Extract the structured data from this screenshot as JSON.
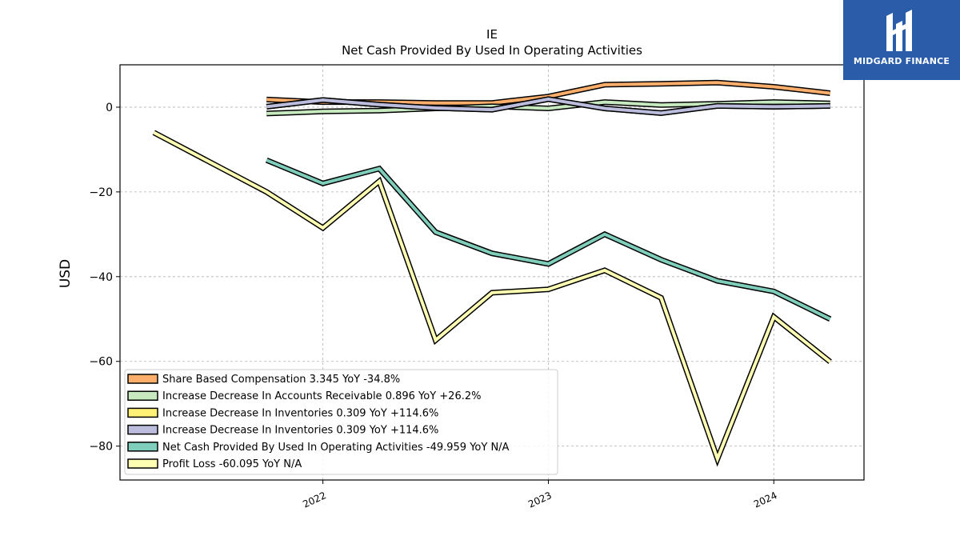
{
  "chart_data": {
    "type": "line",
    "title": "IE",
    "subtitle": "Net Cash Provided By Used In Operating Activities",
    "ylabel": "USD",
    "xlabel": "",
    "ylim": [
      -88,
      10
    ],
    "xlim": [
      2021.1,
      2024.4
    ],
    "yticks": [
      0,
      -20,
      -40,
      -60,
      -80
    ],
    "xticks": [
      2022,
      2023,
      2024
    ],
    "grid": true,
    "legend_position": "lower-left",
    "series": [
      {
        "name": "Share Based Compensation  3.345 YoY -34.8%",
        "color": "#fdae6b",
        "x": [
          2021.75,
          2022.0,
          2022.25,
          2022.5,
          2022.75,
          2023.0,
          2023.25,
          2023.5,
          2023.75,
          2024.0,
          2024.25
        ],
        "y": [
          1.8,
          1.2,
          1.2,
          1.0,
          1.0,
          2.5,
          5.3,
          5.5,
          5.8,
          4.8,
          3.3
        ]
      },
      {
        "name": "Increase Decrease In Accounts Receivable  0.896 YoY +26.2%",
        "color": "#c7e9c0",
        "x": [
          2021.75,
          2022.0,
          2022.25,
          2022.5,
          2022.75,
          2023.0,
          2023.25,
          2023.5,
          2023.75,
          2024.0,
          2024.25
        ],
        "y": [
          -1.5,
          -1.0,
          -0.8,
          -0.3,
          0.2,
          -0.3,
          1.2,
          0.5,
          0.8,
          1.2,
          0.9
        ]
      },
      {
        "name": "Increase Decrease In Inventories  0.309 YoY +114.6%",
        "color": "#fff176",
        "x": [
          2021.75,
          2022.0,
          2022.25,
          2022.5,
          2022.75,
          2023.0,
          2023.25,
          2023.5,
          2023.75,
          2024.0,
          2024.25
        ],
        "y": [
          0.1,
          1.7,
          0.6,
          -0.2,
          -0.6,
          1.9,
          -0.3,
          -1.4,
          0.3,
          0.1,
          0.3
        ]
      },
      {
        "name": "Increase Decrease In Inventories  0.309 YoY +114.6%",
        "color": "#bcbddc",
        "x": [
          2021.75,
          2022.0,
          2022.25,
          2022.5,
          2022.75,
          2023.0,
          2023.25,
          2023.5,
          2023.75,
          2024.0,
          2024.25
        ],
        "y": [
          0.1,
          1.7,
          0.6,
          -0.2,
          -0.6,
          1.9,
          -0.3,
          -1.4,
          0.3,
          0.1,
          0.3
        ]
      },
      {
        "name": "Net Cash Provided By Used In Operating Activities  -49.959 YoY N/A",
        "color": "#7fcdbb",
        "x": [
          2021.75,
          2022.0,
          2022.25,
          2022.5,
          2022.75,
          2023.0,
          2023.25,
          2023.5,
          2023.75,
          2024.0,
          2024.25
        ],
        "y": [
          -12.5,
          -18.0,
          -14.5,
          -29.5,
          -34.5,
          -37.0,
          -30.0,
          -36.0,
          -41.0,
          -43.5,
          -50.0
        ]
      },
      {
        "name": "Profit Loss  -60.095 YoY N/A",
        "color": "#ffffb3",
        "x": [
          2021.25,
          2021.5,
          2021.75,
          2022.0,
          2022.25,
          2022.5,
          2022.75,
          2023.0,
          2023.25,
          2023.5,
          2023.75,
          2024.0,
          2024.25
        ],
        "y": [
          -6.0,
          -13.0,
          -20.0,
          -28.5,
          -17.5,
          -55.0,
          -43.8,
          -43.0,
          -38.5,
          -45.0,
          -83.0,
          -49.5,
          -60.1
        ]
      }
    ]
  },
  "brand": {
    "name": "MIDGARD FINANCE",
    "icon": "midgard-logo-icon"
  }
}
